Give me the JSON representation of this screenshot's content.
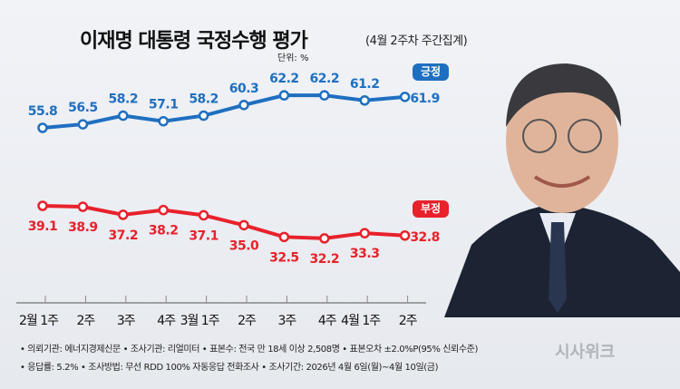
{
  "chart_data": {
    "type": "line",
    "title": "이재명 대통령 국정수행 평가",
    "subtitle": "(4월 2주차 주간집계)",
    "unit": "단위: %",
    "categories": [
      "2월 1주",
      "2주",
      "3주",
      "4주",
      "3월 1주",
      "2주",
      "3주",
      "4주",
      "4월 1주",
      "2주"
    ],
    "series": [
      {
        "name": "긍정",
        "color": "#1f6fc0",
        "values": [
          55.8,
          56.5,
          58.2,
          57.1,
          58.2,
          60.3,
          62.2,
          62.2,
          61.2,
          61.9
        ]
      },
      {
        "name": "부정",
        "color": "#e8212b",
        "values": [
          39.1,
          38.9,
          37.2,
          38.2,
          37.1,
          35.0,
          32.5,
          32.2,
          33.3,
          32.8
        ]
      }
    ],
    "grid": false
  },
  "footer": {
    "line1": "• 의뢰기관: 에너지경제신문 • 조사기관: 리얼미터 • 표본수: 전국 만 18세 이상 2,508명 • 표본오차 ±2.0%P(95% 신뢰수준)",
    "line2": "• 응답률: 5.2% • 조사방법: 무선 RDD 100% 자동응답 전화조사 • 조사기간: 2026년 4월 6일(월)~4월 10일(금)"
  },
  "logo": "시사위크"
}
